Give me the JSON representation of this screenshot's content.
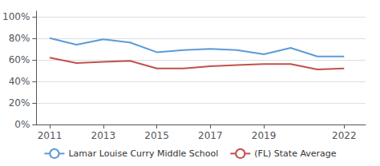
{
  "chart_data": {
    "type": "line",
    "x": [
      2011,
      2012,
      2013,
      2014,
      2015,
      2016,
      2017,
      2018,
      2019,
      2020,
      2021,
      2022
    ],
    "series": [
      {
        "name": "Lamar Louise Curry Middle School",
        "color": "#5b9bd5",
        "values": [
          0.8,
          0.74,
          0.79,
          0.76,
          0.67,
          0.69,
          0.7,
          0.69,
          0.65,
          0.71,
          0.63,
          0.63
        ]
      },
      {
        "name": "(FL) State Average",
        "color": "#c0504d",
        "values": [
          0.62,
          0.57,
          0.58,
          0.59,
          0.52,
          0.52,
          0.54,
          0.55,
          0.56,
          0.56,
          0.51,
          0.52
        ]
      }
    ],
    "xlim": [
      2010.5,
      2022.8
    ],
    "xticks": [
      2011,
      2013,
      2015,
      2017,
      2019,
      2022
    ],
    "ylim": [
      0.0,
      1.05
    ],
    "yticks": [
      {
        "value": 0.0,
        "label": "0%"
      },
      {
        "value": 0.2,
        "label": "20%"
      },
      {
        "value": 0.4,
        "label": "40%"
      },
      {
        "value": 0.6,
        "label": "60%"
      },
      {
        "value": 0.8,
        "label": "80%"
      },
      {
        "value": 1.0,
        "label": "100%"
      }
    ],
    "grid": true,
    "legend": "bottom"
  }
}
